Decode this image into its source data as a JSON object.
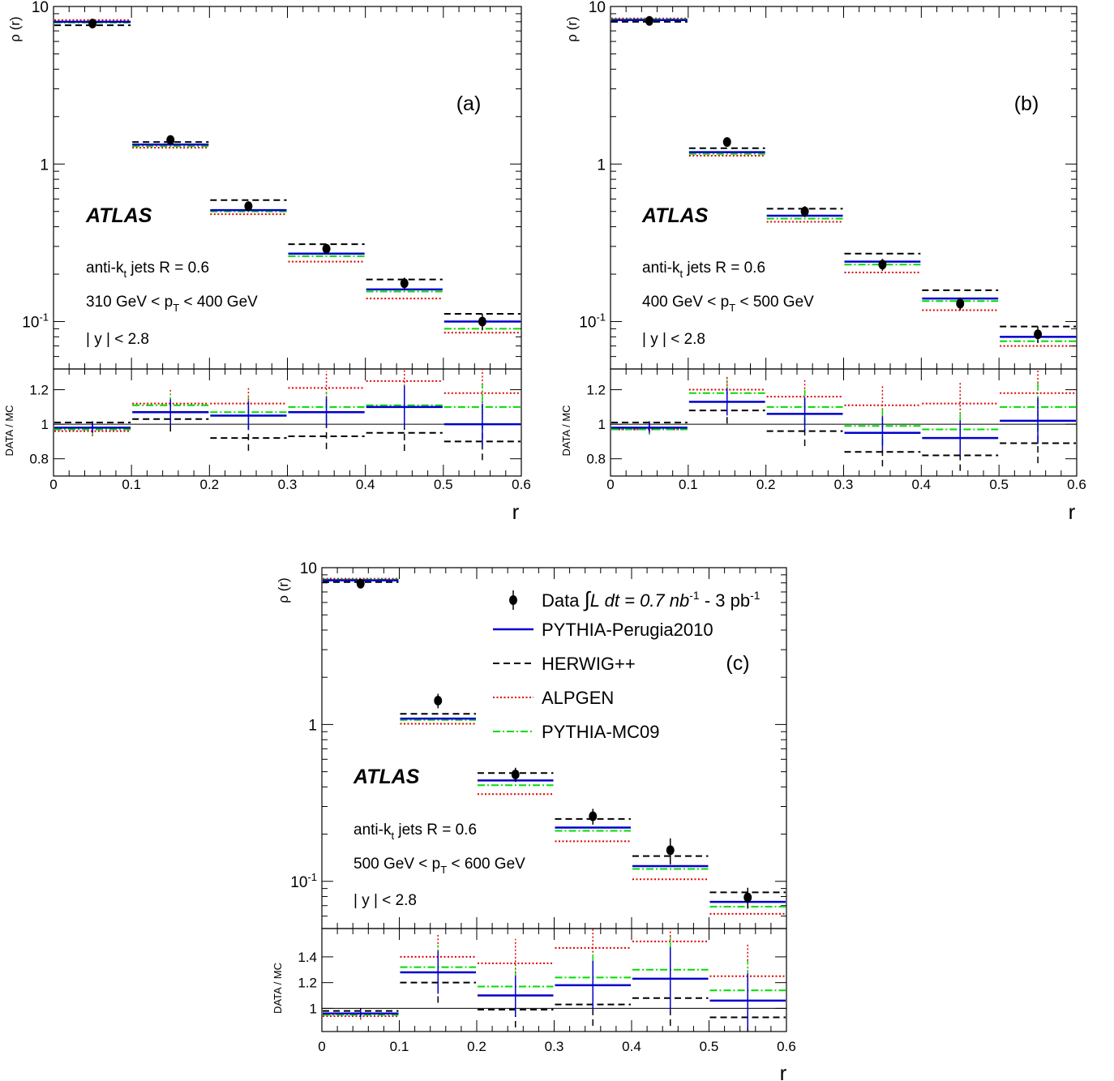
{
  "legend": {
    "data_label": "Data",
    "lumi_text": "L dt = 0.7 nb",
    "lumi_exp1": "-1",
    "lumi_mid": " - 3 pb",
    "lumi_exp2": "-1",
    "entries": [
      {
        "name": "PYTHIA-Perugia2010",
        "color": "#0000cc",
        "style": "solid"
      },
      {
        "name": "HERWIG++",
        "color": "#000000",
        "style": "dashed"
      },
      {
        "name": "ALPGEN",
        "color": "#e00000",
        "style": "dotted"
      },
      {
        "name": "PYTHIA-MC09",
        "color": "#00dd00",
        "style": "dashdot"
      }
    ]
  },
  "common": {
    "atlas": "ATLAS",
    "jets_pre": "anti-k",
    "jets_sub": "t",
    "jets_post": " jets R = 0.6",
    "rap_label": "| y | < 2.8",
    "ylabel_top": "ρ (r)",
    "ylabel_bottom": "DATA / MC",
    "xlabel": "r",
    "xticks": [
      "0",
      "0.1",
      "0.2",
      "0.3",
      "0.4",
      "0.5",
      "0.6"
    ],
    "log_ticks": {
      "ten": "10",
      "one": "1",
      "tenth_base": "10",
      "tenth_exp": "-1"
    }
  },
  "chart_data": [
    {
      "type": "step",
      "panel": "(a)",
      "pt_low": "310 GeV < p",
      "pt_sub": "T",
      "pt_high": " < 400 GeV",
      "r_bins": [
        [
          0,
          0.1
        ],
        [
          0.1,
          0.2
        ],
        [
          0.2,
          0.3
        ],
        [
          0.3,
          0.4
        ],
        [
          0.4,
          0.5
        ],
        [
          0.5,
          0.6
        ]
      ],
      "top_ylim": [
        0.05,
        10
      ],
      "top_scale": "log",
      "data": {
        "values": [
          7.8,
          1.42,
          0.54,
          0.29,
          0.175,
          0.1
        ],
        "err_low": [
          0.3,
          0.06,
          0.04,
          0.02,
          0.015,
          0.012
        ],
        "err_high": [
          0.3,
          0.06,
          0.04,
          0.02,
          0.015,
          0.012
        ]
      },
      "mc": {
        "PYTHIA-Perugia2010": [
          8.0,
          1.33,
          0.51,
          0.27,
          0.16,
          0.1
        ],
        "HERWIG++": [
          7.6,
          1.38,
          0.59,
          0.31,
          0.185,
          0.112
        ],
        "ALPGEN": [
          8.2,
          1.27,
          0.48,
          0.24,
          0.14,
          0.085
        ],
        "PYTHIA-MC09": [
          7.9,
          1.3,
          0.5,
          0.26,
          0.155,
          0.09
        ]
      },
      "ratio_ylim": [
        0.7,
        1.32
      ],
      "ratio_ticks": [
        "0.8",
        "1",
        "1.2"
      ],
      "ratio_tick_values": [
        0.8,
        1.0,
        1.2
      ],
      "ratio": {
        "PYTHIA-Perugia2010": [
          0.98,
          1.07,
          1.05,
          1.07,
          1.1,
          1.0
        ],
        "HERWIG++": [
          1.01,
          1.03,
          0.92,
          0.93,
          0.95,
          0.9
        ],
        "ALPGEN": [
          0.96,
          1.12,
          1.12,
          1.21,
          1.25,
          1.18
        ],
        "PYTHIA-MC09": [
          0.97,
          1.11,
          1.07,
          1.1,
          1.11,
          1.1
        ]
      },
      "ratio_err": [
        0.03,
        0.07,
        0.08,
        0.08,
        0.11,
        0.12
      ]
    },
    {
      "type": "step",
      "panel": "(b)",
      "pt_low": "400 GeV < p",
      "pt_sub": "T",
      "pt_high": " < 500 GeV",
      "r_bins": [
        [
          0,
          0.1
        ],
        [
          0.1,
          0.2
        ],
        [
          0.2,
          0.3
        ],
        [
          0.3,
          0.4
        ],
        [
          0.4,
          0.5
        ],
        [
          0.5,
          0.6
        ]
      ],
      "top_ylim": [
        0.05,
        10
      ],
      "top_scale": "log",
      "data": {
        "values": [
          8.1,
          1.38,
          0.5,
          0.23,
          0.13,
          0.083
        ],
        "err_low": [
          0.3,
          0.06,
          0.04,
          0.02,
          0.012,
          0.01
        ],
        "err_high": [
          0.3,
          0.06,
          0.04,
          0.02,
          0.012,
          0.01
        ]
      },
      "mc": {
        "PYTHIA-Perugia2010": [
          8.2,
          1.19,
          0.47,
          0.24,
          0.14,
          0.08
        ],
        "HERWIG++": [
          8.0,
          1.26,
          0.52,
          0.27,
          0.158,
          0.093
        ],
        "ALPGEN": [
          8.4,
          1.13,
          0.43,
          0.205,
          0.118,
          0.07
        ],
        "PYTHIA-MC09": [
          8.3,
          1.16,
          0.45,
          0.23,
          0.135,
          0.075
        ]
      },
      "ratio_ylim": [
        0.7,
        1.32
      ],
      "ratio_ticks": [
        "0.8",
        "1",
        "1.2"
      ],
      "ratio_tick_values": [
        0.8,
        1.0,
        1.2
      ],
      "ratio": {
        "PYTHIA-Perugia2010": [
          0.98,
          1.13,
          1.06,
          0.95,
          0.92,
          1.02
        ],
        "HERWIG++": [
          1.01,
          1.08,
          0.96,
          0.84,
          0.82,
          0.89
        ],
        "ALPGEN": [
          0.97,
          1.2,
          1.16,
          1.11,
          1.12,
          1.18
        ],
        "PYTHIA-MC09": [
          0.97,
          1.18,
          1.1,
          0.99,
          0.97,
          1.1
        ]
      },
      "ratio_err": [
        0.03,
        0.07,
        0.09,
        0.1,
        0.11,
        0.13
      ]
    },
    {
      "type": "step",
      "panel": "(c)",
      "pt_low": "500 GeV < p",
      "pt_sub": "T",
      "pt_high": " < 600 GeV",
      "r_bins": [
        [
          0,
          0.1
        ],
        [
          0.1,
          0.2
        ],
        [
          0.2,
          0.3
        ],
        [
          0.3,
          0.4
        ],
        [
          0.4,
          0.5
        ],
        [
          0.5,
          0.6
        ]
      ],
      "top_ylim": [
        0.05,
        10
      ],
      "top_scale": "log",
      "data": {
        "values": [
          7.9,
          1.42,
          0.48,
          0.26,
          0.158,
          0.079
        ],
        "err_low": [
          0.3,
          0.15,
          0.05,
          0.03,
          0.03,
          0.012
        ],
        "err_high": [
          0.3,
          0.15,
          0.05,
          0.03,
          0.03,
          0.012
        ]
      },
      "mc": {
        "PYTHIA-Perugia2010": [
          8.3,
          1.09,
          0.44,
          0.22,
          0.125,
          0.074
        ],
        "HERWIG++": [
          8.1,
          1.17,
          0.49,
          0.25,
          0.145,
          0.085
        ],
        "ALPGEN": [
          8.5,
          1.01,
          0.36,
          0.18,
          0.103,
          0.062
        ],
        "PYTHIA-MC09": [
          8.4,
          1.07,
          0.41,
          0.21,
          0.12,
          0.069
        ]
      },
      "ratio_ylim": [
        0.82,
        1.62
      ],
      "ratio_ticks": [
        "1",
        "1.2",
        "1.4"
      ],
      "ratio_tick_values": [
        1.0,
        1.2,
        1.4
      ],
      "ratio": {
        "PYTHIA-Perugia2010": [
          0.96,
          1.28,
          1.1,
          1.18,
          1.23,
          1.06
        ],
        "HERWIG++": [
          0.98,
          1.2,
          0.99,
          1.03,
          1.08,
          0.93
        ],
        "ALPGEN": [
          0.94,
          1.4,
          1.35,
          1.47,
          1.52,
          1.25
        ],
        "PYTHIA-MC09": [
          0.95,
          1.32,
          1.17,
          1.24,
          1.3,
          1.14
        ]
      },
      "ratio_err": [
        0.03,
        0.13,
        0.14,
        0.16,
        0.2,
        0.2
      ]
    }
  ]
}
